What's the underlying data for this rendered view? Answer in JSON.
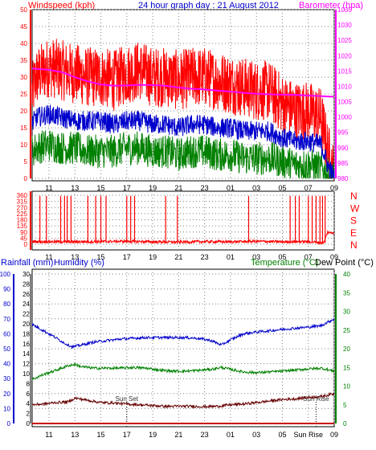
{
  "header": {
    "title": "24 hour graph day : 21 August 2012",
    "left_label": "Windspeed (kph)",
    "right_label": "Barometer (hpa)"
  },
  "colors": {
    "gust": "#ff0000",
    "average": "#0000cc",
    "low": "#008000",
    "barometer": "#ff00ff",
    "direction": "#ff0000",
    "humidity": "#0000cc",
    "temperature": "#008000",
    "dew_point": "#660000",
    "rainfall": "#cc0000",
    "left_axis": "#ff0000",
    "right_axis": "#ff00ff",
    "rain_axis": "#0000cc",
    "temp_axis": "#008000"
  },
  "chart_data": [
    {
      "type": "line",
      "name": "wind-barometer",
      "x_ticks": [
        "11",
        "13",
        "15",
        "17",
        "19",
        "21",
        "23",
        "01",
        "03",
        "05",
        "07",
        "09"
      ],
      "left_axis": {
        "label": "Windspeed (kph)",
        "ylim": [
          0,
          50
        ],
        "ticks": [
          "0",
          "5",
          "10",
          "15",
          "20",
          "25",
          "30",
          "35",
          "40",
          "45",
          "50"
        ]
      },
      "right_axis": {
        "label": "Barometer (hpa)",
        "ylim": [
          980,
          1035
        ],
        "ticks": [
          "980",
          "985",
          "990",
          "995",
          "1000",
          "1005",
          "1010",
          "1015",
          "1020",
          "1025",
          "1030",
          "1035"
        ]
      },
      "series": [
        {
          "key": "gust",
          "x": [
            9.7,
            10,
            11,
            12,
            13,
            14,
            15,
            16,
            17,
            18,
            19,
            20,
            21,
            22,
            23,
            24,
            25,
            26,
            27,
            28,
            29,
            30,
            31,
            32,
            32.5,
            33
          ],
          "values": [
            25,
            30,
            33,
            32,
            31,
            30,
            30,
            29,
            31,
            32,
            30,
            30,
            29,
            30,
            30,
            29,
            28,
            27,
            26,
            26,
            22,
            20,
            20,
            18,
            8,
            1
          ]
        },
        {
          "key": "average",
          "x": [
            9.7,
            10,
            11,
            12,
            13,
            14,
            15,
            16,
            17,
            18,
            19,
            20,
            21,
            22,
            23,
            24,
            25,
            26,
            27,
            28,
            29,
            30,
            31,
            32,
            32.5,
            33
          ],
          "values": [
            16,
            18,
            19,
            18,
            17,
            17,
            17,
            16,
            17,
            17,
            16,
            16,
            15,
            16,
            16,
            15,
            15,
            14,
            14,
            14,
            12,
            11,
            11,
            10,
            4,
            0
          ]
        },
        {
          "key": "low",
          "x": [
            9.7,
            10,
            11,
            12,
            13,
            14,
            15,
            16,
            17,
            18,
            19,
            20,
            21,
            22,
            23,
            24,
            25,
            26,
            27,
            28,
            29,
            30,
            31,
            32,
            32.5,
            33
          ],
          "values": [
            8,
            9,
            10,
            9,
            9,
            8,
            8,
            8,
            9,
            9,
            8,
            8,
            7,
            8,
            8,
            7,
            7,
            6,
            6,
            6,
            5,
            4,
            4,
            3,
            1,
            0
          ]
        },
        {
          "key": "barometer",
          "x": [
            9.7,
            11,
            12,
            13,
            14,
            15,
            16,
            17,
            18,
            19,
            20,
            21,
            22,
            23,
            24,
            25,
            26,
            27,
            28,
            29,
            30,
            31,
            32,
            33
          ],
          "values": [
            1015.8,
            1015.4,
            1014.6,
            1013.0,
            1011.6,
            1010.6,
            1010.2,
            1010.3,
            1010.5,
            1010.4,
            1010.2,
            1009.6,
            1009.2,
            1009.0,
            1008.6,
            1008.3,
            1007.9,
            1007.6,
            1007.4,
            1007.3,
            1007.2,
            1007.0,
            1006.8,
            1006.6
          ]
        }
      ]
    },
    {
      "type": "line",
      "name": "wind-direction",
      "x_ticks": [
        "11",
        "13",
        "15",
        "17",
        "19",
        "21",
        "23",
        "01",
        "03",
        "05",
        "07",
        "09"
      ],
      "left_axis": {
        "ylim": [
          0,
          360
        ],
        "ticks": [
          "0",
          "45",
          "90",
          "135",
          "180",
          "225",
          "270",
          "315",
          "360"
        ]
      },
      "right_labels": [
        "N",
        "W",
        "S",
        "E",
        "N"
      ],
      "series": [
        {
          "key": "direction",
          "x": [
            9.7,
            12,
            15,
            17,
            19,
            21,
            23,
            25,
            27,
            29,
            31,
            32.2,
            32.5,
            32.7,
            33
          ],
          "values": [
            20,
            18,
            20,
            22,
            18,
            16,
            20,
            18,
            22,
            18,
            20,
            10,
            90,
            84,
            88
          ],
          "spikes_x": [
            10.3,
            10.8,
            11.9,
            12.2,
            12.4,
            12.7,
            14.0,
            14.6,
            15.0,
            15.4,
            17.0,
            17.3,
            17.6,
            20.0,
            20.9,
            26.4,
            29.6,
            30.0,
            30.3,
            31.0,
            31.3,
            31.6,
            31.9,
            32.1,
            32.3
          ]
        }
      ]
    },
    {
      "type": "line",
      "name": "rain-humidity-temperature",
      "x_ticks": [
        "11",
        "13",
        "15",
        "17",
        "19",
        "21",
        "23",
        "01",
        "03",
        "05",
        "Sun Rise",
        "09"
      ],
      "left_label": "Rainfall (mm)",
      "second_label": "Humidity (%)",
      "right_label": "Temperature (°C)",
      "far_right_label": "Dew Point (°C)",
      "rain_axis": {
        "ylim": [
          0,
          100
        ],
        "ticks": [
          "0",
          "10",
          "20",
          "30",
          "40",
          "50",
          "60",
          "70",
          "80",
          "90",
          "100"
        ]
      },
      "humidity_axis": {
        "ylim": [
          0,
          30
        ],
        "ticks": [
          "0",
          "2",
          "4",
          "6",
          "8",
          "10",
          "12",
          "14",
          "16",
          "18",
          "20",
          "22",
          "24",
          "26",
          "28",
          "30"
        ]
      },
      "temp_axis": {
        "ylim": [
          0,
          40
        ],
        "ticks": [
          "0",
          "5",
          "10",
          "15",
          "20",
          "25",
          "30",
          "35",
          "40"
        ]
      },
      "annotations": [
        {
          "text": "Sun Set",
          "x": 17.0
        },
        {
          "text": "Sun Rise",
          "x": 31.6
        }
      ],
      "series": [
        {
          "key": "humidity",
          "axis": "temp",
          "x": [
            9.7,
            10.5,
            11.5,
            12.2,
            12.8,
            13.5,
            14.5,
            15.5,
            16.5,
            17.5,
            18.5,
            20,
            21.5,
            22.5,
            23.5,
            24.3,
            25,
            26,
            27,
            28,
            29,
            30,
            31,
            32,
            33
          ],
          "values": [
            26.5,
            25,
            23,
            21.5,
            20.5,
            21,
            21.8,
            22.2,
            22.6,
            22.8,
            23,
            23,
            23,
            22.8,
            22.2,
            21,
            22.4,
            24,
            24.5,
            24.8,
            25.2,
            25.5,
            25.8,
            26.2,
            28
          ]
        },
        {
          "key": "temperature",
          "axis": "temp",
          "x": [
            9.7,
            10.5,
            11.5,
            12.5,
            13.0,
            13.5,
            14.5,
            15.5,
            16.5,
            17.5,
            18.5,
            19.5,
            20.5,
            21.5,
            22.5,
            23.5,
            24.3,
            25,
            26,
            27,
            28,
            29,
            30,
            31,
            32,
            33
          ],
          "values": [
            11.8,
            13,
            14.2,
            15.5,
            15.8,
            15.2,
            14.8,
            14.8,
            14.8,
            15,
            14.8,
            14.3,
            14.0,
            14.0,
            14.2,
            14.5,
            15,
            14.5,
            13.8,
            13.6,
            13.8,
            14.0,
            14.3,
            14.6,
            14.8,
            14.0
          ]
        },
        {
          "key": "dew_point",
          "axis": "temp",
          "x": [
            9.7,
            10.5,
            11.5,
            12.5,
            13.0,
            14,
            15,
            16,
            17,
            18,
            19,
            20,
            21,
            22,
            23,
            24,
            25,
            26,
            27,
            28,
            29,
            30,
            31,
            32,
            33
          ],
          "values": [
            5.0,
            5.2,
            5.6,
            5.8,
            6.8,
            6.2,
            5.6,
            5.5,
            5.2,
            5.0,
            4.8,
            4.6,
            4.6,
            4.6,
            4.5,
            4.6,
            5.0,
            5.2,
            5.6,
            6.0,
            6.4,
            6.6,
            7.0,
            7.2,
            8.0
          ]
        },
        {
          "key": "rainfall",
          "axis": "rain",
          "x": [
            9.7,
            33
          ],
          "values": [
            0,
            0
          ]
        }
      ]
    }
  ]
}
